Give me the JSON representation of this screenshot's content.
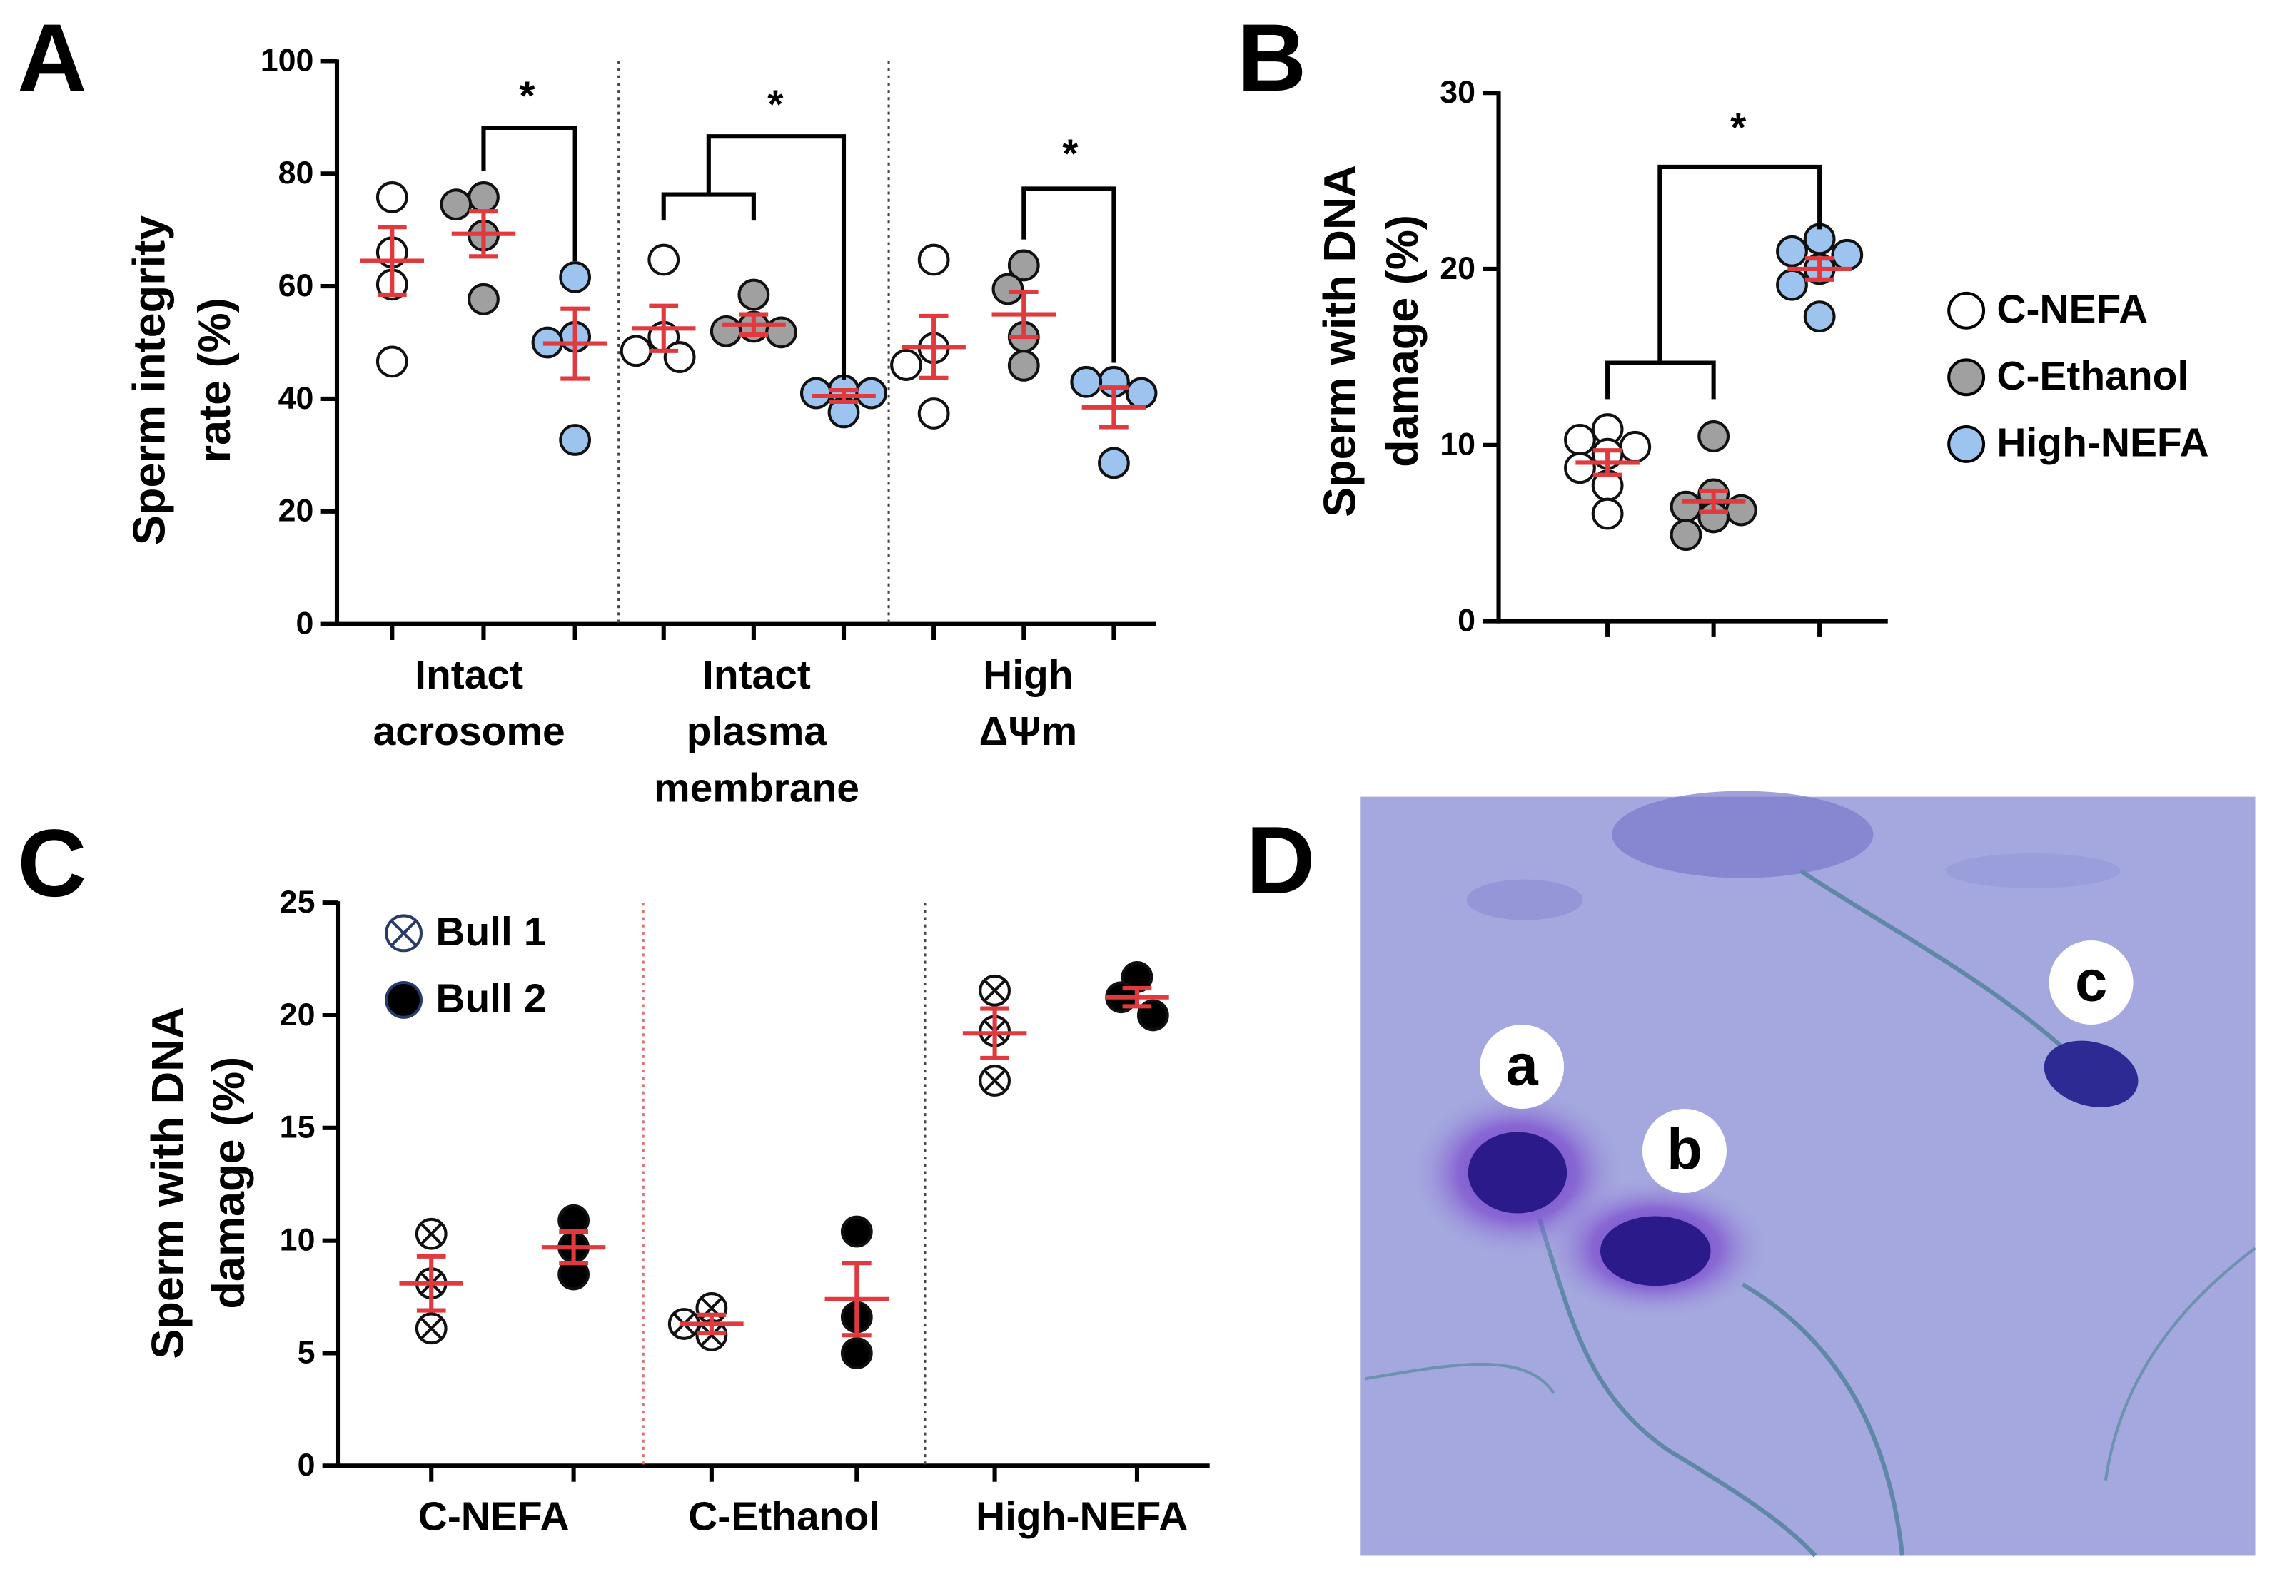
{
  "chart_data": [
    {
      "panel": "A",
      "type": "strip",
      "ylabel": [
        "Sperm integrity",
        "rate (%)"
      ],
      "categories": [
        [
          "Intact",
          "acrosome"
        ],
        [
          "Intact",
          "plasma",
          "membrane"
        ],
        [
          "High",
          "ΔΨm"
        ]
      ],
      "series": [
        {
          "name": "C-NEFA",
          "color": "#ffffff",
          "marker": "circle",
          "points": [
            [
              75.8,
              66,
              60.3,
              46.6
            ],
            [
              64.7,
              51,
              48.5,
              47.4
            ],
            [
              64.7,
              49,
              46,
              37.4
            ]
          ],
          "means": [
            64.5,
            52.5,
            49.2
          ],
          "sems": [
            6,
            4,
            5.5
          ]
        },
        {
          "name": "C-Ethanol",
          "color": "#a0a0a0",
          "marker": "circle",
          "points": [
            [
              75.8,
              74.5,
              69,
              57.7
            ],
            [
              58.5,
              52.8,
              52,
              51.8
            ],
            [
              63.7,
              59.5,
              51,
              45.9
            ]
          ],
          "means": [
            69.3,
            53.2,
            55
          ],
          "sems": [
            4,
            1.8,
            4
          ]
        },
        {
          "name": "High-NEFA",
          "color": "#9cc4ee",
          "marker": "circle",
          "points": [
            [
              61.6,
              51,
              50,
              32.7
            ],
            [
              41.5,
              41,
              41,
              37.6
            ],
            [
              43,
              43,
              41,
              28.6
            ]
          ],
          "means": [
            49.8,
            40.5,
            38.5
          ],
          "sems": [
            6.2,
            1,
            3.5
          ]
        }
      ],
      "ylim": [
        0,
        100
      ],
      "yticks": [
        0,
        20,
        40,
        60,
        80,
        100
      ],
      "annotations": [
        "*",
        "*",
        "*"
      ]
    },
    {
      "panel": "B",
      "type": "strip",
      "ylabel": [
        "Sperm with  DNA",
        "damage (%)"
      ],
      "categories": [
        null,
        null,
        null
      ],
      "series": [
        {
          "name": "C-NEFA",
          "color": "#ffffff",
          "marker": "circle",
          "points": [
            [
              10.9,
              10.3,
              9.9,
              9.5,
              8.7,
              7.7,
              6.1
            ],
            null,
            null
          ],
          "means": [
            9,
            null,
            null
          ],
          "sems": [
            0.7,
            null,
            null
          ]
        },
        {
          "name": "C-Ethanol",
          "color": "#a0a0a0",
          "marker": "circle",
          "points": [
            null,
            [
              10.5,
              7.2,
              6.5,
              6.3,
              5.9,
              4.9
            ],
            null
          ],
          "means": [
            null,
            6.8,
            null
          ],
          "sems": [
            null,
            0.6,
            null
          ]
        },
        {
          "name": "High-NEFA",
          "color": "#9cc4ee",
          "marker": "circle",
          "points": [
            null,
            null,
            [
              21.7,
              21,
              20.8,
              20,
              19.1,
              17.3
            ]
          ],
          "means": [
            null,
            null,
            20
          ],
          "sems": [
            null,
            null,
            0.6
          ]
        }
      ],
      "ylim": [
        0,
        30
      ],
      "yticks": [
        0,
        10,
        20,
        30
      ],
      "annotations": [
        "*"
      ]
    },
    {
      "panel": "C",
      "type": "strip",
      "ylabel": [
        "Sperm with  DNA",
        "damage (%)"
      ],
      "categories": [
        [
          "C-NEFA"
        ],
        [
          "C-Ethanol"
        ],
        [
          "High-NEFA"
        ]
      ],
      "series": [
        {
          "name": "Bull 1",
          "color": "#ffffff",
          "marker": "circle-x",
          "points": [
            [
              10.3,
              8.1,
              6.1
            ],
            [
              7,
              6.3,
              5.8
            ],
            [
              21.1,
              19.3,
              17.1
            ]
          ],
          "means": [
            8.1,
            6.3,
            19.2
          ],
          "sems": [
            1.2,
            0.4,
            1.1
          ]
        },
        {
          "name": "Bull 2",
          "color": "#000000",
          "marker": "circle",
          "points": [
            [
              10.9,
              9.7,
              8.5
            ],
            [
              10.4,
              6.6,
              5
            ],
            [
              21.7,
              20.8,
              20
            ]
          ],
          "means": [
            9.7,
            7.4,
            20.8
          ],
          "sems": [
            0.7,
            1.6,
            0.4
          ]
        }
      ],
      "ylim": [
        0,
        25
      ],
      "yticks": [
        0,
        5,
        10,
        15,
        20,
        25
      ],
      "annotations": []
    }
  ],
  "micrograph": {
    "panel": "D",
    "labels": [
      "a",
      "b",
      "c"
    ]
  }
}
